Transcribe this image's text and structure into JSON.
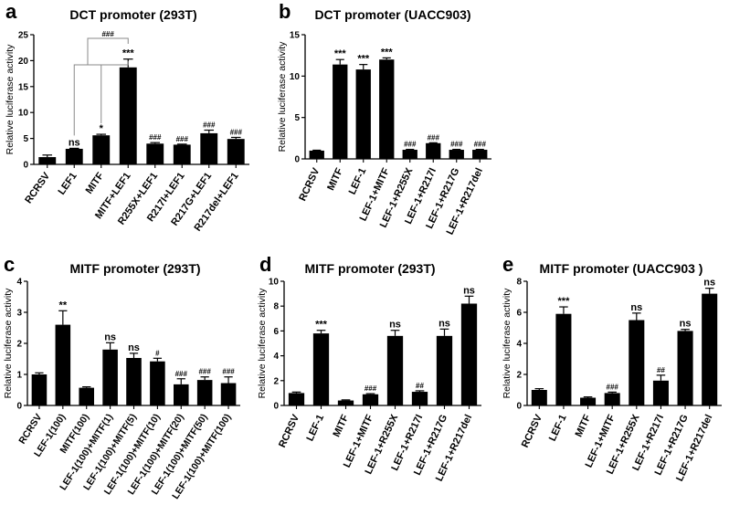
{
  "chart_data": [
    {
      "panel": "a",
      "type": "bar",
      "title": "DCT promoter (293T)",
      "ylabel": "Relative luciferase activity",
      "xlabel": "",
      "ylim": [
        0,
        25
      ],
      "yticks": [
        0,
        5,
        10,
        15,
        20,
        25
      ],
      "categories": [
        "RCRSV",
        "LEF1",
        "MITF",
        "MITF+LEF1",
        "R255X+LEF1",
        "R217I+LEF1",
        "R217G+LEF1",
        "R217del+LEF1"
      ],
      "values": [
        1.4,
        3.0,
        5.6,
        18.7,
        4.0,
        3.8,
        6.0,
        4.9
      ],
      "errors": [
        0.4,
        0.1,
        0.2,
        1.6,
        0.2,
        0.1,
        0.6,
        0.3
      ],
      "significance": [
        "",
        "ns",
        "*",
        "***",
        "###",
        "###",
        "###",
        "###"
      ],
      "bracket_label": "###"
    },
    {
      "panel": "b",
      "type": "bar",
      "title": "DCT promoter (UACC903)",
      "ylabel": "Relative luciferase activity",
      "xlabel": "",
      "ylim": [
        0,
        15
      ],
      "yticks": [
        0,
        5,
        10,
        15
      ],
      "categories": [
        "RCRSV",
        "MITF",
        "LEF-1",
        "LEF-1+MITF",
        "LEF-1+R255X",
        "LEF-1+R217I",
        "LEF-1+R217G",
        "LEF-1+R217del"
      ],
      "values": [
        1.0,
        11.4,
        10.8,
        12.0,
        1.1,
        1.9,
        1.1,
        1.1
      ],
      "errors": [
        0.05,
        0.6,
        0.6,
        0.2,
        0.05,
        0.05,
        0.05,
        0.05
      ],
      "significance": [
        "",
        "***",
        "***",
        "***",
        "###",
        "###",
        "###",
        "###"
      ]
    },
    {
      "panel": "c",
      "type": "bar",
      "title": "MITF promoter (293T)",
      "ylabel": "Relative luciferase activity",
      "xlabel": "",
      "ylim": [
        0,
        4
      ],
      "yticks": [
        0,
        1,
        2,
        3,
        4
      ],
      "categories": [
        "RCRSV",
        "LEF-1(100)",
        "MITF(100)",
        "LEF-1(100)+MITF(1)",
        "LEF-1(100)+MITF(5)",
        "LEF-1(100)+MITF(10)",
        "LEF-1(100)+MITF(20)",
        "LEF-1(100)+MITF(50)",
        "LEF-1(100)+MITF(100)"
      ],
      "values": [
        1.0,
        2.6,
        0.57,
        1.8,
        1.53,
        1.42,
        0.68,
        0.82,
        0.72
      ],
      "errors": [
        0.05,
        0.45,
        0.03,
        0.22,
        0.15,
        0.1,
        0.18,
        0.1,
        0.2
      ],
      "significance": [
        "",
        "**",
        "",
        "ns",
        "ns",
        "#",
        "###",
        "###",
        "###"
      ]
    },
    {
      "panel": "d",
      "type": "bar",
      "title": "MITF promoter (293T)",
      "ylabel": "Relative luciferase activity",
      "xlabel": "",
      "ylim": [
        0,
        10
      ],
      "yticks": [
        0,
        2,
        4,
        6,
        8,
        10
      ],
      "categories": [
        "RCRSV",
        "LEF-1",
        "MITF",
        "LEF-1+MITF",
        "LEF-1+R255X",
        "LEF-1+R217I",
        "LEF-1+R217G",
        "LEF-1+R217del"
      ],
      "values": [
        1.0,
        5.8,
        0.4,
        0.9,
        5.6,
        1.1,
        5.6,
        8.2
      ],
      "errors": [
        0.08,
        0.25,
        0.05,
        0.05,
        0.45,
        0.08,
        0.55,
        0.6
      ],
      "significance": [
        "",
        "***",
        "",
        "###",
        "ns",
        "##",
        "ns",
        "ns"
      ]
    },
    {
      "panel": "e",
      "type": "bar",
      "title": "MITF promoter (UACC903 )",
      "ylabel": "Relative luciferase activity",
      "xlabel": "",
      "ylim": [
        0,
        8
      ],
      "yticks": [
        0,
        2,
        4,
        6,
        8
      ],
      "categories": [
        "RCRSV",
        "LEF-1",
        "MITF",
        "LEF-1+MITF",
        "LEF-1+R255X",
        "LEF-1+R217I",
        "LEF-1+R217G",
        "LEF-1+R217del"
      ],
      "values": [
        1.0,
        5.9,
        0.5,
        0.8,
        5.5,
        1.6,
        4.8,
        7.2
      ],
      "errors": [
        0.08,
        0.45,
        0.05,
        0.06,
        0.45,
        0.35,
        0.1,
        0.35
      ],
      "significance": [
        "",
        "***",
        "",
        "###",
        "ns",
        "##",
        "ns",
        "ns"
      ]
    }
  ]
}
